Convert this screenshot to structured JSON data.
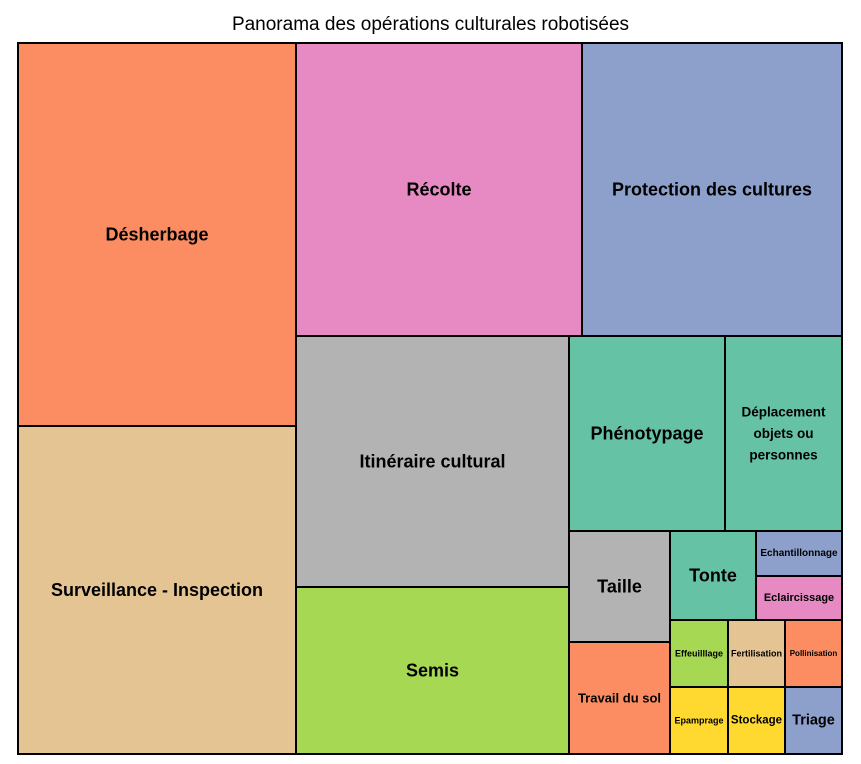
{
  "chart_data": {
    "type": "treemap",
    "title": "Panorama des opérations culturales robotisées",
    "items": [
      {
        "label": "Désherbage",
        "color": "#fc8d62"
      },
      {
        "label": "Surveillance - Inspection",
        "color": "#e5c494"
      },
      {
        "label": "Récolte",
        "color": "#e78ac3"
      },
      {
        "label": "Protection des cultures",
        "color": "#8da0cb"
      },
      {
        "label": "Itinéraire cultural",
        "color": "#b3b3b3"
      },
      {
        "label": "Semis",
        "color": "#a6d854"
      },
      {
        "label": "Phénotypage",
        "color": "#66c2a5"
      },
      {
        "label": "Déplacement objets ou personnes",
        "color": "#66c2a5"
      },
      {
        "label": "Taille",
        "color": "#b3b3b3"
      },
      {
        "label": "Travail du sol",
        "color": "#fc8d62"
      },
      {
        "label": "Tonte",
        "color": "#66c2a5"
      },
      {
        "label": "Echantillonnage",
        "color": "#8da0cb"
      },
      {
        "label": "Eclaircissage",
        "color": "#e78ac3"
      },
      {
        "label": "Effeuilllage",
        "color": "#a6d854"
      },
      {
        "label": "Fertilisation",
        "color": "#e5c494"
      },
      {
        "label": "Pollinisation",
        "color": "#fc8d62"
      },
      {
        "label": "Epamprage",
        "color": "#ffd92f"
      },
      {
        "label": "Stockage",
        "color": "#ffd92f"
      },
      {
        "label": "Triage",
        "color": "#8da0cb"
      }
    ]
  }
}
